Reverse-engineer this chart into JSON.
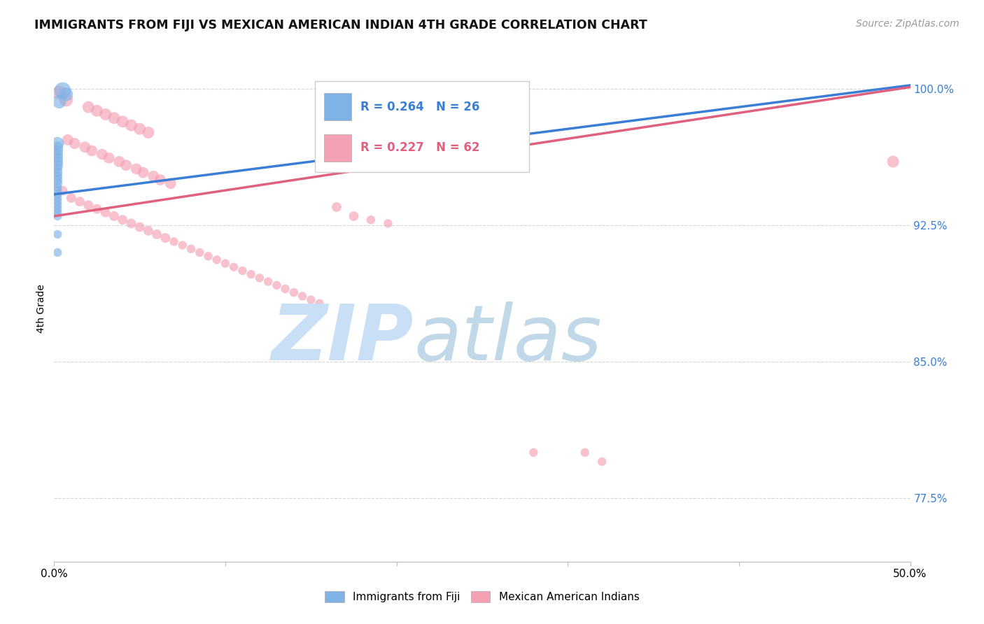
{
  "title": "IMMIGRANTS FROM FIJI VS MEXICAN AMERICAN INDIAN 4TH GRADE CORRELATION CHART",
  "source": "Source: ZipAtlas.com",
  "ylabel_label": "4th Grade",
  "xmin": 0.0,
  "xmax": 0.5,
  "ymin": 0.74,
  "ymax": 1.018,
  "fiji_R": 0.264,
  "fiji_N": 26,
  "mai_R": 0.227,
  "mai_N": 62,
  "fiji_color": "#7fb3e8",
  "mai_color": "#f4a0b5",
  "fiji_line_color": "#3a7fd5",
  "mai_line_color": "#e06080",
  "fiji_line": [
    [
      0.0,
      0.942
    ],
    [
      0.5,
      1.002
    ]
  ],
  "mai_line": [
    [
      0.0,
      0.93
    ],
    [
      0.5,
      1.001
    ]
  ],
  "fiji_scatter": [
    [
      0.005,
      0.999
    ],
    [
      0.007,
      0.997
    ],
    [
      0.003,
      0.993
    ],
    [
      0.002,
      0.97
    ],
    [
      0.002,
      0.968
    ],
    [
      0.002,
      0.966
    ],
    [
      0.002,
      0.964
    ],
    [
      0.002,
      0.962
    ],
    [
      0.002,
      0.96
    ],
    [
      0.002,
      0.958
    ],
    [
      0.002,
      0.956
    ],
    [
      0.002,
      0.954
    ],
    [
      0.002,
      0.952
    ],
    [
      0.002,
      0.95
    ],
    [
      0.002,
      0.948
    ],
    [
      0.002,
      0.946
    ],
    [
      0.002,
      0.944
    ],
    [
      0.002,
      0.942
    ],
    [
      0.002,
      0.94
    ],
    [
      0.002,
      0.938
    ],
    [
      0.002,
      0.936
    ],
    [
      0.002,
      0.934
    ],
    [
      0.002,
      0.932
    ],
    [
      0.002,
      0.93
    ],
    [
      0.002,
      0.92
    ],
    [
      0.002,
      0.91
    ]
  ],
  "fiji_sizes": [
    300,
    200,
    200,
    180,
    130,
    130,
    130,
    130,
    130,
    130,
    100,
    100,
    100,
    100,
    100,
    80,
    80,
    80,
    80,
    80,
    80,
    80,
    80,
    80,
    80,
    80
  ],
  "mai_scatter": [
    [
      0.003,
      0.998
    ],
    [
      0.007,
      0.994
    ],
    [
      0.02,
      0.99
    ],
    [
      0.025,
      0.988
    ],
    [
      0.03,
      0.986
    ],
    [
      0.035,
      0.984
    ],
    [
      0.04,
      0.982
    ],
    [
      0.045,
      0.98
    ],
    [
      0.05,
      0.978
    ],
    [
      0.055,
      0.976
    ],
    [
      0.008,
      0.972
    ],
    [
      0.012,
      0.97
    ],
    [
      0.018,
      0.968
    ],
    [
      0.022,
      0.966
    ],
    [
      0.028,
      0.964
    ],
    [
      0.032,
      0.962
    ],
    [
      0.038,
      0.96
    ],
    [
      0.042,
      0.958
    ],
    [
      0.048,
      0.956
    ],
    [
      0.052,
      0.954
    ],
    [
      0.058,
      0.952
    ],
    [
      0.062,
      0.95
    ],
    [
      0.068,
      0.948
    ],
    [
      0.005,
      0.944
    ],
    [
      0.01,
      0.94
    ],
    [
      0.015,
      0.938
    ],
    [
      0.02,
      0.936
    ],
    [
      0.025,
      0.934
    ],
    [
      0.03,
      0.932
    ],
    [
      0.035,
      0.93
    ],
    [
      0.04,
      0.928
    ],
    [
      0.045,
      0.926
    ],
    [
      0.05,
      0.924
    ],
    [
      0.055,
      0.922
    ],
    [
      0.06,
      0.92
    ],
    [
      0.065,
      0.918
    ],
    [
      0.07,
      0.916
    ],
    [
      0.075,
      0.914
    ],
    [
      0.08,
      0.912
    ],
    [
      0.085,
      0.91
    ],
    [
      0.09,
      0.908
    ],
    [
      0.095,
      0.906
    ],
    [
      0.1,
      0.904
    ],
    [
      0.105,
      0.902
    ],
    [
      0.11,
      0.9
    ],
    [
      0.115,
      0.898
    ],
    [
      0.12,
      0.896
    ],
    [
      0.125,
      0.894
    ],
    [
      0.13,
      0.892
    ],
    [
      0.135,
      0.89
    ],
    [
      0.14,
      0.888
    ],
    [
      0.145,
      0.886
    ],
    [
      0.15,
      0.884
    ],
    [
      0.155,
      0.882
    ],
    [
      0.165,
      0.935
    ],
    [
      0.175,
      0.93
    ],
    [
      0.185,
      0.928
    ],
    [
      0.195,
      0.926
    ],
    [
      0.28,
      0.8
    ],
    [
      0.49,
      0.96
    ],
    [
      0.31,
      0.8
    ],
    [
      0.32,
      0.795
    ]
  ],
  "mai_sizes": [
    200,
    200,
    150,
    150,
    150,
    150,
    150,
    150,
    150,
    150,
    130,
    130,
    130,
    130,
    130,
    130,
    130,
    130,
    130,
    130,
    130,
    130,
    130,
    100,
    100,
    100,
    100,
    100,
    100,
    100,
    100,
    100,
    100,
    100,
    100,
    100,
    80,
    80,
    80,
    80,
    80,
    80,
    80,
    80,
    80,
    80,
    80,
    80,
    80,
    80,
    80,
    80,
    80,
    80,
    100,
    100,
    80,
    80,
    80,
    150,
    80,
    80
  ],
  "background_color": "#ffffff",
  "grid_color": "#cccccc",
  "watermark_zip": "ZIP",
  "watermark_atlas": "atlas",
  "watermark_color_zip": "#c8dff5",
  "watermark_color_atlas": "#c0d8e8"
}
